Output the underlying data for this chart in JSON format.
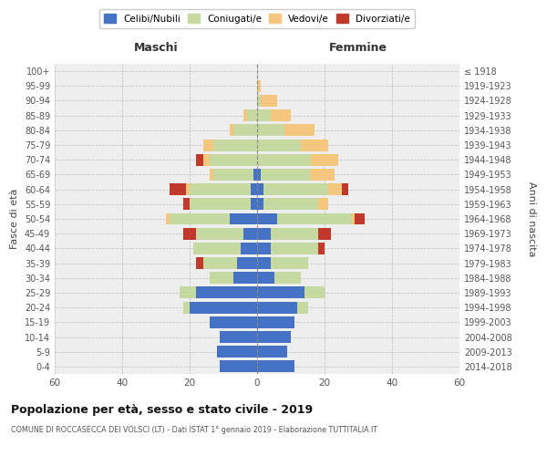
{
  "age_groups": [
    "0-4",
    "5-9",
    "10-14",
    "15-19",
    "20-24",
    "25-29",
    "30-34",
    "35-39",
    "40-44",
    "45-49",
    "50-54",
    "55-59",
    "60-64",
    "65-69",
    "70-74",
    "75-79",
    "80-84",
    "85-89",
    "90-94",
    "95-99",
    "100+"
  ],
  "birth_years": [
    "2014-2018",
    "2009-2013",
    "2004-2008",
    "1999-2003",
    "1994-1998",
    "1989-1993",
    "1984-1988",
    "1979-1983",
    "1974-1978",
    "1969-1973",
    "1964-1968",
    "1959-1963",
    "1954-1958",
    "1949-1953",
    "1944-1948",
    "1939-1943",
    "1934-1938",
    "1929-1933",
    "1924-1928",
    "1919-1923",
    "≤ 1918"
  ],
  "maschi": {
    "celibi": [
      11,
      12,
      11,
      14,
      20,
      18,
      7,
      6,
      5,
      4,
      8,
      2,
      2,
      1,
      0,
      0,
      0,
      0,
      0,
      0,
      0
    ],
    "coniugati": [
      0,
      0,
      0,
      0,
      2,
      5,
      7,
      10,
      14,
      14,
      18,
      18,
      18,
      12,
      14,
      13,
      7,
      3,
      0,
      0,
      0
    ],
    "vedovi": [
      0,
      0,
      0,
      0,
      0,
      0,
      0,
      0,
      0,
      0,
      1,
      0,
      1,
      1,
      2,
      3,
      1,
      1,
      0,
      0,
      0
    ],
    "divorziati": [
      0,
      0,
      0,
      0,
      0,
      0,
      0,
      2,
      0,
      4,
      0,
      2,
      5,
      0,
      2,
      0,
      0,
      0,
      0,
      0,
      0
    ]
  },
  "femmine": {
    "nubili": [
      11,
      9,
      10,
      11,
      12,
      14,
      5,
      4,
      4,
      4,
      6,
      2,
      2,
      1,
      0,
      0,
      0,
      0,
      0,
      0,
      0
    ],
    "coniugate": [
      0,
      0,
      0,
      0,
      3,
      6,
      8,
      11,
      14,
      14,
      22,
      16,
      19,
      15,
      16,
      13,
      8,
      4,
      1,
      0,
      0
    ],
    "vedove": [
      0,
      0,
      0,
      0,
      0,
      0,
      0,
      0,
      0,
      0,
      1,
      3,
      4,
      7,
      8,
      8,
      9,
      6,
      5,
      1,
      0
    ],
    "divorziate": [
      0,
      0,
      0,
      0,
      0,
      0,
      0,
      0,
      2,
      4,
      3,
      0,
      2,
      0,
      0,
      0,
      0,
      0,
      0,
      0,
      0
    ]
  },
  "colors": {
    "celibi": "#4472C4",
    "coniugati": "#C5D9A0",
    "vedovi": "#F5C77E",
    "divorziati": "#C0392B"
  },
  "xlim": 60,
  "title": "Popolazione per età, sesso e stato civile - 2019",
  "subtitle": "COMUNE DI ROCCASECCA DEI VOLSCI (LT) - Dati ISTAT 1° gennaio 2019 - Elaborazione TUTTITALIA.IT",
  "ylabel_left": "Fasce di età",
  "ylabel_right": "Anni di nascita",
  "xlabel_maschi": "Maschi",
  "xlabel_femmine": "Femmine"
}
